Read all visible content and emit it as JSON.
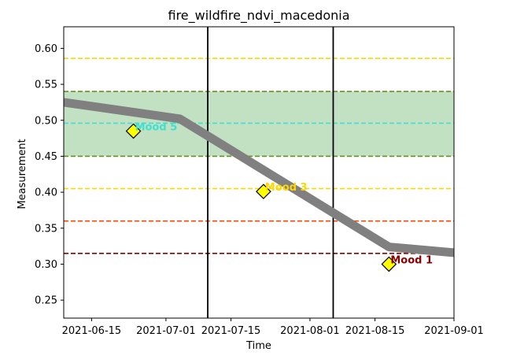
{
  "chart_data": {
    "type": "line",
    "title": "fire_wildfire_ndvi_macedonia",
    "xlabel": "Time",
    "ylabel": "Measurement",
    "xlim": [
      "2021-06-09",
      "2021-09-01"
    ],
    "ylim": [
      0.225,
      0.63
    ],
    "x_ticks": [
      "2021-06-15",
      "2021-07-01",
      "2021-07-15",
      "2021-08-01",
      "2021-08-15",
      "2021-09-01"
    ],
    "y_ticks": [
      "0.25",
      "0.30",
      "0.35",
      "0.40",
      "0.45",
      "0.50",
      "0.55",
      "0.60"
    ],
    "series": [
      {
        "name": "measurement",
        "color": "#808080",
        "points": [
          {
            "x": "2021-06-09",
            "y": 0.525
          },
          {
            "x": "2021-07-04",
            "y": 0.502
          },
          {
            "x": "2021-08-18",
            "y": 0.324
          },
          {
            "x": "2021-09-01",
            "y": 0.316
          }
        ]
      }
    ],
    "band": {
      "y0": 0.45,
      "y1": 0.54,
      "fill": "#c2e0c2",
      "edge_color": "#6b8e23"
    },
    "hlines": [
      {
        "y": 0.586,
        "color": "#ffd700"
      },
      {
        "y": 0.496,
        "color": "#40e0d0"
      },
      {
        "y": 0.405,
        "color": "#ffd700"
      },
      {
        "y": 0.36,
        "color": "#ff4500"
      },
      {
        "y": 0.315,
        "color": "#8b0000"
      }
    ],
    "vlines": [
      {
        "x": "2021-07-10",
        "color": "#000000"
      },
      {
        "x": "2021-08-06",
        "color": "#000000"
      }
    ],
    "annotations": [
      {
        "label": "Mood 5",
        "x": "2021-06-24",
        "y": 0.485,
        "color": "#40e0d0"
      },
      {
        "label": "Mood 3",
        "x": "2021-07-22",
        "y": 0.401,
        "color": "#ffd700"
      },
      {
        "label": "Mood 1",
        "x": "2021-08-18",
        "y": 0.3,
        "color": "#8b0000"
      }
    ]
  }
}
